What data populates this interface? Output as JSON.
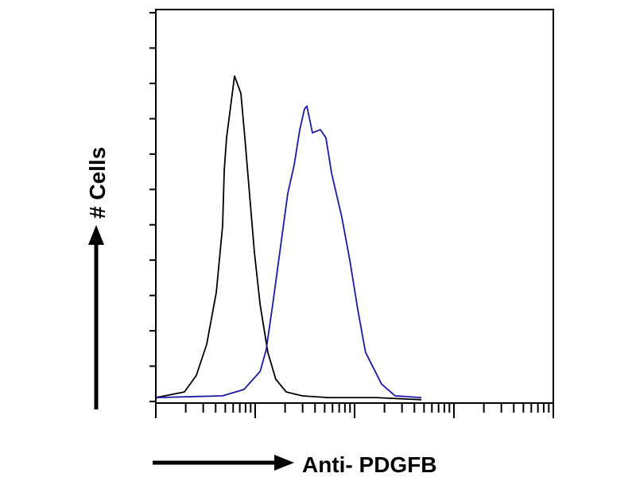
{
  "chart_data": {
    "type": "line",
    "title": "",
    "xlabel": "Anti- PDGFB",
    "ylabel": "# Cells",
    "x_scale": "log",
    "xlim": [
      1,
      10000
    ],
    "ylim": [
      0,
      110
    ],
    "y_tick_step": 10,
    "grid": false,
    "legend": "none",
    "series": [
      {
        "color": "#000000",
        "x": [
          1,
          1.94,
          2.56,
          3.25,
          4.06,
          4.7,
          4.88,
          5.15,
          6.19,
          7.18,
          7.87,
          8.63,
          9.82,
          11.2,
          13.4,
          16.1,
          20.5,
          29.6,
          54.5,
          164,
          470
        ],
        "y": [
          1.1,
          2.7,
          7.4,
          16.2,
          30.9,
          49.7,
          65.6,
          74.6,
          92.1,
          87.2,
          74.6,
          61.1,
          42.2,
          27.4,
          13.9,
          6.3,
          2.7,
          1.6,
          1.1,
          1.1,
          0.5
        ]
      },
      {
        "color": "#1a1aa6",
        "x": [
          1.02,
          4.7,
          7.71,
          11.2,
          12.9,
          15.0,
          18.0,
          21.3,
          24.7,
          28.1,
          31.3,
          33.1,
          37.7,
          45.3,
          51.5,
          58.6,
          74.5,
          89.5,
          108,
          129,
          187,
          256,
          470
        ],
        "y": [
          1.1,
          1.6,
          3.4,
          8.5,
          14.6,
          27.4,
          43.8,
          58.9,
          67.0,
          76.9,
          82.7,
          83.6,
          76.0,
          76.9,
          74.6,
          64.7,
          52.1,
          40.0,
          25.8,
          13.9,
          4.9,
          1.6,
          1.1
        ]
      }
    ]
  }
}
